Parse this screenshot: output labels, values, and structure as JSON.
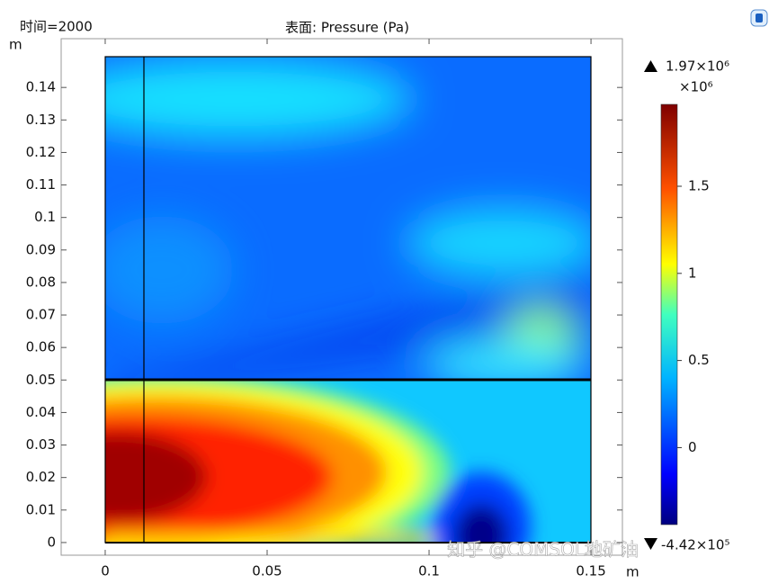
{
  "chart_data": {
    "type": "surface",
    "time_label": "时间=2000",
    "title": "表面: Pressure (Pa)",
    "y_unit": "m",
    "x_unit": "m",
    "xlim": [
      -0.0136,
      0.1597
    ],
    "xticks": [
      0,
      0.05,
      0.1,
      0.15
    ],
    "ylim": [
      -0.0039,
      0.155
    ],
    "yticks": [
      0,
      0.01,
      0.02,
      0.03,
      0.04,
      0.05,
      0.06,
      0.07,
      0.08,
      0.09,
      0.1,
      0.11,
      0.12,
      0.13,
      0.14
    ],
    "colorbar": {
      "max_label": "1.97×10⁶",
      "scale_label": "×10⁶",
      "min_label": "-4.42×10⁵",
      "clim": [
        -0.442,
        1.97
      ],
      "ticks": [
        0,
        0.5,
        1,
        1.5
      ]
    },
    "watermark": "知乎 @COMSOL地矿油"
  }
}
